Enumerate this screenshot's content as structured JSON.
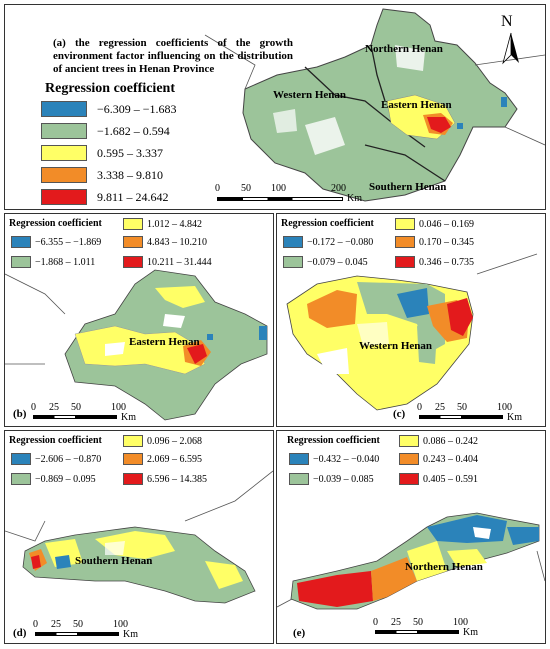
{
  "panel_a": {
    "title": "(a) the regression coefficients of the growth environment factor influencing on the distribution of ancient trees in Henan Province",
    "legend_title": "Regression coefficient",
    "legend": [
      {
        "label": "−6.309 – −1.683",
        "color": "#2b83ba"
      },
      {
        "label": "−1.682 – 0.594",
        "color": "#9cc49a"
      },
      {
        "label": "0.595 – 3.337",
        "color": "#ffff66"
      },
      {
        "label": "3.338 – 9.810",
        "color": "#f28c28"
      },
      {
        "label": "9.811 – 24.642",
        "color": "#e31a1c"
      }
    ],
    "regions": {
      "northern": "Northern Henan",
      "western": "Western Henan",
      "eastern": "Eastern Henan",
      "southern": "Southern Henan"
    },
    "north": "N",
    "scale": {
      "ticks": [
        "0",
        "50",
        "100",
        "200"
      ],
      "unit": "Km"
    }
  },
  "panel_b": {
    "label": "(b)",
    "legend_title": "Regression coefficient",
    "legend": [
      {
        "label": "−6.355 – −1.869",
        "color": "#2b83ba"
      },
      {
        "label": "−1.868 – 1.011",
        "color": "#9cc49a"
      },
      {
        "label": "1.012 – 4.842",
        "color": "#ffff66"
      },
      {
        "label": "4.843 – 10.210",
        "color": "#f28c28"
      },
      {
        "label": "10.211 – 31.444",
        "color": "#e31a1c"
      }
    ],
    "region": "Eastern Henan",
    "scale": {
      "ticks": [
        "0",
        "25",
        "50",
        "100"
      ],
      "unit": "Km"
    }
  },
  "panel_c": {
    "label": "(c)",
    "legend_title": "Regression coefficient",
    "legend": [
      {
        "label": "−0.172 – −0.080",
        "color": "#2b83ba"
      },
      {
        "label": "−0.079 – 0.045",
        "color": "#9cc49a"
      },
      {
        "label": "0.046 – 0.169",
        "color": "#ffff66"
      },
      {
        "label": "0.170 – 0.345",
        "color": "#f28c28"
      },
      {
        "label": "0.346 – 0.735",
        "color": "#e31a1c"
      }
    ],
    "region": "Western Henan",
    "scale": {
      "ticks": [
        "0",
        "25",
        "50",
        "100"
      ],
      "unit": "Km"
    }
  },
  "panel_d": {
    "label": "(d)",
    "legend_title": "Regression coefficient",
    "legend": [
      {
        "label": "−2.606 – −0.870",
        "color": "#2b83ba"
      },
      {
        "label": "−0.869 – 0.095",
        "color": "#9cc49a"
      },
      {
        "label": "0.096 – 2.068",
        "color": "#ffff66"
      },
      {
        "label": "2.069 – 6.595",
        "color": "#f28c28"
      },
      {
        "label": "6.596 – 14.385",
        "color": "#e31a1c"
      }
    ],
    "region": "Southern Henan",
    "scale": {
      "ticks": [
        "0",
        "25",
        "50",
        "100"
      ],
      "unit": "Km"
    }
  },
  "panel_e": {
    "label": "(e)",
    "legend_title": "Regression coefficient",
    "legend": [
      {
        "label": "−0.432 – −0.040",
        "color": "#2b83ba"
      },
      {
        "label": "−0.039 – 0.085",
        "color": "#9cc49a"
      },
      {
        "label": "0.086 – 0.242",
        "color": "#ffff66"
      },
      {
        "label": "0.243 – 0.404",
        "color": "#f28c28"
      },
      {
        "label": "0.405 – 0.591",
        "color": "#e31a1c"
      }
    ],
    "region": "Northern Henan",
    "scale": {
      "ticks": [
        "0",
        "25",
        "50",
        "100"
      ],
      "unit": "Km"
    }
  }
}
